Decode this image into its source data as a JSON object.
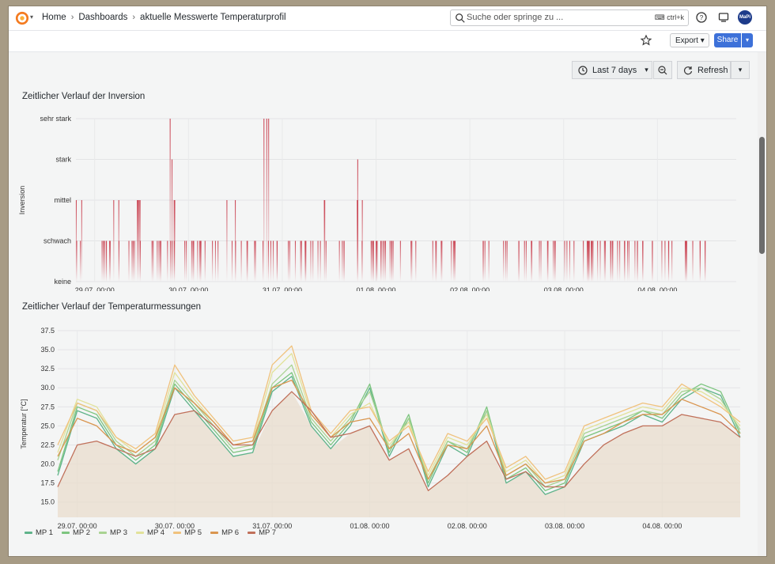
{
  "breadcrumb": {
    "home": "Home",
    "dashboards": "Dashboards",
    "current": "aktuelle Messwerte Temperaturprofil"
  },
  "search": {
    "placeholder": "Suche oder springe zu ...",
    "shortcut": "ctrl+k"
  },
  "user": {
    "initials": "MaPi"
  },
  "actions": {
    "export": "Export",
    "share": "Share"
  },
  "time_picker": {
    "range": "Last 7 days",
    "refresh": "Refresh"
  },
  "colors": {
    "accent": "#3d71d9",
    "inversion": "#c9404f"
  },
  "chart_data": [
    {
      "type": "bar",
      "title": "Zeitlicher Verlauf der Inversion",
      "ylabel": "Inversion",
      "ylevels": [
        "keine",
        "schwach",
        "mittel",
        "stark",
        "sehr stark"
      ],
      "xticks": [
        "29.07. 00:00",
        "30.07. 00:00",
        "31.07. 00:00",
        "01.08. 00:00",
        "02.08. 00:00",
        "03.08. 00:00",
        "04.08. 00:00"
      ],
      "x_start": "28.07. 19:00",
      "x_end": "04.08. 20:00",
      "events": [
        {
          "t": 0.05,
          "v": 2
        },
        {
          "t": 0.3,
          "v": 1
        },
        {
          "t": 0.4,
          "v": 2
        },
        {
          "t": 0.6,
          "v": 1
        },
        {
          "t": 0.7,
          "v": 2
        },
        {
          "t": 0.85,
          "v": 1
        },
        {
          "t": 0.95,
          "v": 1
        },
        {
          "t": 1.05,
          "v": 2
        },
        {
          "t": 1.2,
          "v": 1
        },
        {
          "t": 1.35,
          "v": 1
        },
        {
          "t": 1.5,
          "v": 1
        },
        {
          "t": 1.65,
          "v": 2
        },
        {
          "t": 1.8,
          "v": 1
        },
        {
          "t": 1.95,
          "v": 1
        },
        {
          "t": 2.1,
          "v": 1
        },
        {
          "t": 2.3,
          "v": 1
        },
        {
          "t": 2.45,
          "v": 1
        },
        {
          "t": 2.55,
          "v": 1
        },
        {
          "t": 2.7,
          "v": 2
        },
        {
          "t": 2.85,
          "v": 1
        },
        {
          "t": 3.0,
          "v": 2
        },
        {
          "t": 3.15,
          "v": 1
        },
        {
          "t": 3.25,
          "v": 1
        },
        {
          "t": 3.4,
          "v": 1
        },
        {
          "t": 3.6,
          "v": 1
        },
        {
          "t": 3.85,
          "v": 1
        },
        {
          "t": 4.05,
          "v": 1
        },
        {
          "t": 4.35,
          "v": 1
        },
        {
          "t": 4.55,
          "v": 1
        },
        {
          "t": 4.75,
          "v": 1
        },
        {
          "t": 4.9,
          "v": 1
        },
        {
          "t": 5.05,
          "v": 1
        },
        {
          "t": 5.25,
          "v": 1
        },
        {
          "t": 5.45,
          "v": 1
        },
        {
          "t": 5.6,
          "v": 1
        },
        {
          "t": 5.8,
          "v": 1
        },
        {
          "t": 6.0,
          "v": 1
        },
        {
          "t": 5.5,
          "v": 1
        },
        {
          "t": 5.7,
          "v": 1
        },
        {
          "t": 5.9,
          "v": 1
        },
        {
          "t": 6.1,
          "v": 1
        },
        {
          "t": 6.3,
          "v": 1
        },
        {
          "t": 6.55,
          "v": 1
        },
        {
          "t": 6.7,
          "v": 1
        }
      ]
    },
    {
      "type": "line",
      "title": "Zeitlicher Verlauf der Temperaturmessungen",
      "ylabel": "Temperatur [°C]",
      "ylim": [
        13.0,
        37.5
      ],
      "yticks": [
        15.0,
        17.5,
        20.0,
        22.5,
        25.0,
        27.5,
        30.0,
        32.5,
        35.0,
        37.5
      ],
      "xticks": [
        "29.07. 00:00",
        "30.07. 00:00",
        "31.07. 00:00",
        "01.08. 00:00",
        "02.08. 00:00",
        "03.08. 00:00",
        "04.08. 00:00"
      ],
      "series": [
        {
          "name": "MP 1",
          "color": "#5fb38a"
        },
        {
          "name": "MP 2",
          "color": "#7dc57f"
        },
        {
          "name": "MP 3",
          "color": "#a9d392"
        },
        {
          "name": "MP 4",
          "color": "#e2e29a"
        },
        {
          "name": "MP 5",
          "color": "#f0c27d"
        },
        {
          "name": "MP 6",
          "color": "#d9954f"
        },
        {
          "name": "MP 7",
          "color": "#c0705a"
        }
      ],
      "time_days": [
        0.0,
        0.2,
        0.4,
        0.6,
        0.8,
        1.0,
        1.2,
        1.4,
        1.6,
        1.8,
        2.0,
        2.2,
        2.4,
        2.6,
        2.8,
        3.0,
        3.2,
        3.4,
        3.6,
        3.8,
        4.0,
        4.2,
        4.4,
        4.6,
        4.8,
        5.0,
        5.2,
        5.4,
        5.6,
        5.8,
        6.0,
        6.2,
        6.4,
        6.6,
        6.8,
        7.0
      ],
      "values": {
        "MP 1": [
          18.5,
          27.0,
          26.0,
          22.0,
          20.0,
          22.0,
          30.0,
          27.0,
          24.0,
          21.0,
          21.5,
          29.5,
          31.5,
          25.0,
          22.0,
          25.0,
          30.0,
          21.0,
          26.0,
          17.0,
          22.5,
          21.0,
          27.0,
          17.5,
          19.0,
          16.0,
          17.0,
          23.0,
          24.0,
          25.0,
          26.5,
          25.5,
          28.5,
          30.0,
          29.0,
          23.5
        ],
        "MP 2": [
          19.0,
          27.5,
          26.5,
          22.5,
          20.5,
          22.5,
          30.5,
          27.5,
          24.5,
          21.5,
          22.0,
          30.0,
          32.0,
          25.5,
          22.5,
          25.5,
          30.5,
          21.5,
          26.5,
          17.5,
          23.0,
          21.5,
          27.5,
          18.0,
          19.5,
          16.5,
          17.5,
          23.5,
          24.5,
          25.5,
          27.0,
          26.0,
          29.0,
          30.5,
          29.5,
          24.0
        ],
        "MP 3": [
          20.5,
          28.0,
          27.0,
          23.0,
          21.0,
          23.0,
          31.0,
          28.0,
          25.0,
          22.0,
          22.5,
          30.5,
          33.0,
          26.0,
          23.0,
          26.0,
          29.5,
          22.0,
          26.0,
          18.0,
          23.0,
          22.0,
          27.0,
          18.5,
          20.0,
          17.0,
          18.0,
          24.0,
          25.0,
          26.0,
          27.0,
          26.5,
          29.5,
          30.0,
          28.5,
          24.5
        ],
        "MP 4": [
          21.5,
          28.5,
          27.5,
          23.5,
          21.5,
          23.5,
          32.0,
          28.5,
          25.5,
          22.5,
          23.0,
          32.0,
          34.5,
          26.5,
          23.5,
          26.5,
          28.0,
          22.5,
          25.5,
          18.5,
          23.5,
          22.5,
          26.5,
          19.0,
          20.5,
          17.5,
          18.5,
          24.5,
          25.5,
          26.5,
          27.5,
          27.0,
          30.0,
          29.5,
          28.0,
          25.0
        ],
        "MP 5": [
          22.5,
          28.0,
          27.0,
          23.5,
          22.0,
          24.0,
          33.0,
          29.0,
          26.0,
          23.0,
          23.5,
          33.0,
          35.5,
          27.0,
          24.0,
          27.0,
          27.5,
          23.0,
          25.0,
          19.0,
          24.0,
          23.0,
          26.0,
          19.5,
          21.0,
          18.0,
          19.0,
          25.0,
          26.0,
          27.0,
          28.0,
          27.5,
          30.5,
          29.0,
          27.5,
          25.5
        ],
        "MP 6": [
          21.0,
          26.0,
          25.0,
          22.5,
          21.5,
          23.5,
          30.0,
          28.0,
          25.5,
          22.5,
          23.0,
          30.0,
          31.0,
          26.5,
          23.5,
          25.5,
          26.0,
          22.0,
          24.0,
          18.0,
          22.5,
          22.0,
          25.0,
          18.5,
          20.0,
          17.5,
          18.0,
          23.0,
          24.0,
          25.5,
          26.5,
          26.5,
          28.5,
          27.5,
          26.5,
          24.0
        ],
        "MP 7": [
          17.0,
          22.5,
          23.0,
          22.0,
          21.0,
          22.0,
          26.5,
          27.0,
          25.0,
          22.5,
          22.5,
          27.0,
          29.5,
          27.0,
          23.5,
          24.0,
          25.0,
          20.5,
          22.0,
          16.5,
          18.5,
          21.0,
          23.0,
          18.0,
          19.0,
          17.0,
          17.0,
          20.0,
          22.5,
          24.0,
          25.0,
          25.0,
          26.5,
          26.0,
          25.5,
          23.5
        ]
      }
    }
  ]
}
